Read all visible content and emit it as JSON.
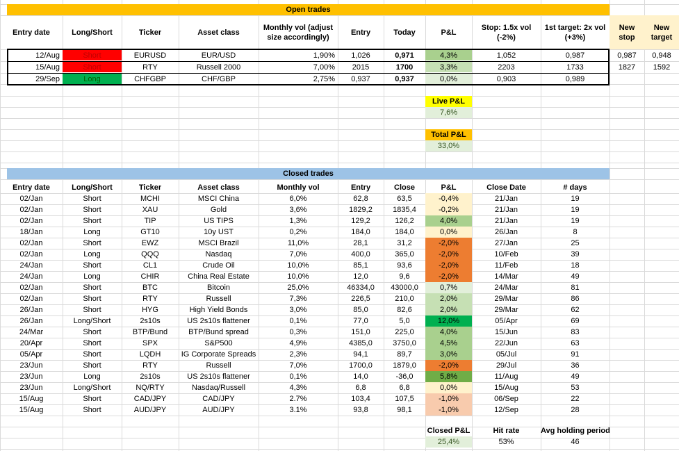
{
  "colors": {
    "header_orange": "#FFC000",
    "header_blue": "#9DC3E6",
    "short_red": "#FF0000",
    "long_green": "#00B050",
    "pl_light_green": "#C6E0B4",
    "pl_green": "#A9D08E",
    "pl_mid_green": "#70AD47",
    "pl_dark_green": "#00B050",
    "pl_light_orange": "#F8CBAD",
    "pl_orange": "#F4B183",
    "pl_dark_orange": "#ED7D31",
    "pl_cream": "#FFF2CC",
    "summary_yellow": "#FFFF00",
    "summary_orange": "#FFC000",
    "summary_green_bg": "#E2EFDA",
    "new_cols_bg": "#FFF2CC"
  },
  "open": {
    "band_title": "Open trades",
    "headers": {
      "entry_date": "Entry date",
      "long_short": "Long/Short",
      "ticker": "Ticker",
      "asset_class": "Asset class",
      "monthly_vol": "Monthly vol (adjust size accordingly)",
      "entry": "Entry",
      "today": "Today",
      "pl": "P&L",
      "stop": "Stop: 1.5x vol (-2%)",
      "target": "1st target: 2x vol (+3%)",
      "new_stop": "New stop",
      "new_target": "New target"
    },
    "rows": [
      {
        "date": "12/Aug",
        "side": "Short",
        "ticker": "EURUSD",
        "asset": "EUR/USD",
        "vol": "1,90%",
        "entry": "1,026",
        "today": "0,971",
        "pl": "4,3%",
        "stop": "1,052",
        "target": "0,987",
        "new_stop": "0,987",
        "new_target": "0,948"
      },
      {
        "date": "15/Aug",
        "side": "Short",
        "ticker": "RTY",
        "asset": "Russell 2000",
        "vol": "7,00%",
        "entry": "2015",
        "today": "1700",
        "pl": "3,3%",
        "stop": "2203",
        "target": "1733",
        "new_stop": "1827",
        "new_target": "1592"
      },
      {
        "date": "29/Sep",
        "side": "Long",
        "ticker": "CHFGBP",
        "asset": "CHF/GBP",
        "vol": "2,75%",
        "entry": "0,937",
        "today": "0,937",
        "pl": "0,0%",
        "stop": "0,903",
        "target": "0,989",
        "new_stop": "",
        "new_target": ""
      }
    ],
    "live_pl_label": "Live P&L",
    "live_pl_value": "7,6%",
    "total_pl_label": "Total P&L",
    "total_pl_value": "33,0%"
  },
  "closed": {
    "band_title": "Closed trades",
    "headers": {
      "entry_date": "Entry date",
      "long_short": "Long/Short",
      "ticker": "Ticker",
      "asset_class": "Asset class",
      "monthly_vol": "Monthly vol",
      "entry": "Entry",
      "close": "Close",
      "pl": "P&L",
      "close_date": "Close Date",
      "days": "# days"
    },
    "rows": [
      {
        "date": "02/Jan",
        "side": "Short",
        "ticker": "MCHI",
        "asset": "MSCI China",
        "vol": "6,0%",
        "entry": "62,8",
        "close": "63,5",
        "pl": "-0,4%",
        "pl_color": "#FFF2CC",
        "close_date": "21/Jan",
        "days": "19"
      },
      {
        "date": "02/Jan",
        "side": "Short",
        "ticker": "XAU",
        "asset": "Gold",
        "vol": "3,6%",
        "entry": "1829,2",
        "close": "1835,4",
        "pl": "-0,2%",
        "pl_color": "#FFF2CC",
        "close_date": "21/Jan",
        "days": "19"
      },
      {
        "date": "02/Jan",
        "side": "Short",
        "ticker": "TIP",
        "asset": "US TIPS",
        "vol": "1,3%",
        "entry": "129,2",
        "close": "126,2",
        "pl": "4,0%",
        "pl_color": "#A9D08E",
        "close_date": "21/Jan",
        "days": "19"
      },
      {
        "date": "18/Jan",
        "side": "Long",
        "ticker": "GT10",
        "asset": "10y UST",
        "vol": "0,2%",
        "entry": "184,0",
        "close": "184,0",
        "pl": "0,0%",
        "pl_color": "#FFF2CC",
        "close_date": "26/Jan",
        "days": "8"
      },
      {
        "date": "02/Jan",
        "side": "Short",
        "ticker": "EWZ",
        "asset": "MSCI Brazil",
        "vol": "11,0%",
        "entry": "28,1",
        "close": "31,2",
        "pl": "-2,0%",
        "pl_color": "#ED7D31",
        "close_date": "27/Jan",
        "days": "25"
      },
      {
        "date": "02/Jan",
        "side": "Long",
        "ticker": "QQQ",
        "asset": "Nasdaq",
        "vol": "7,0%",
        "entry": "400,0",
        "close": "365,0",
        "pl": "-2,0%",
        "pl_color": "#ED7D31",
        "close_date": "10/Feb",
        "days": "39"
      },
      {
        "date": "24/Jan",
        "side": "Short",
        "ticker": "CL1",
        "asset": "Crude Oil",
        "vol": "10,0%",
        "entry": "85,1",
        "close": "93,6",
        "pl": "-2,0%",
        "pl_color": "#ED7D31",
        "close_date": "11/Feb",
        "days": "18"
      },
      {
        "date": "24/Jan",
        "side": "Long",
        "ticker": "CHIR",
        "asset": "China Real Estate",
        "vol": "10,0%",
        "entry": "12,0",
        "close": "9,6",
        "pl": "-2,0%",
        "pl_color": "#ED7D31",
        "close_date": "14/Mar",
        "days": "49"
      },
      {
        "date": "02/Jan",
        "side": "Short",
        "ticker": "BTC",
        "asset": "Bitcoin",
        "vol": "25,0%",
        "entry": "46334,0",
        "close": "43000,0",
        "pl": "0,7%",
        "pl_color": "#E2EFDA",
        "close_date": "24/Mar",
        "days": "81"
      },
      {
        "date": "02/Jan",
        "side": "Short",
        "ticker": "RTY",
        "asset": "Russell",
        "vol": "7,3%",
        "entry": "226,5",
        "close": "210,0",
        "pl": "2,0%",
        "pl_color": "#C6E0B4",
        "close_date": "29/Mar",
        "days": "86"
      },
      {
        "date": "26/Jan",
        "side": "Short",
        "ticker": "HYG",
        "asset": "High Yield Bonds",
        "vol": "3,0%",
        "entry": "85,0",
        "close": "82,6",
        "pl": "2,0%",
        "pl_color": "#C6E0B4",
        "close_date": "29/Mar",
        "days": "62"
      },
      {
        "date": "26/Jan",
        "side": "Long/Short",
        "ticker": "2s10s",
        "asset": "US 2s10s flattener",
        "vol": "0,1%",
        "entry": "77,0",
        "close": "5,0",
        "pl": "12,0%",
        "pl_color": "#00B050",
        "close_date": "05/Apr",
        "days": "69"
      },
      {
        "date": "24/Mar",
        "side": "Short",
        "ticker": "BTP/Bund",
        "asset": "BTP/Bund spread",
        "vol": "0,3%",
        "entry": "151,0",
        "close": "225,0",
        "pl": "4,0%",
        "pl_color": "#A9D08E",
        "close_date": "15/Jun",
        "days": "83"
      },
      {
        "date": "20/Apr",
        "side": "Short",
        "ticker": "SPX",
        "asset": "S&P500",
        "vol": "4,9%",
        "entry": "4385,0",
        "close": "3750,0",
        "pl": "4,5%",
        "pl_color": "#A9D08E",
        "close_date": "22/Jun",
        "days": "63"
      },
      {
        "date": "05/Apr",
        "side": "Short",
        "ticker": "LQDH",
        "asset": "IG Corporate Spreads",
        "vol": "2,3%",
        "entry": "94,1",
        "close": "89,7",
        "pl": "3,0%",
        "pl_color": "#A9D08E",
        "close_date": "05/Jul",
        "days": "91"
      },
      {
        "date": "23/Jun",
        "side": "Short",
        "ticker": "RTY",
        "asset": "Russell",
        "vol": "7,0%",
        "entry": "1700,0",
        "close": "1879,0",
        "pl": "-2,0%",
        "pl_color": "#ED7D31",
        "close_date": "29/Jul",
        "days": "36"
      },
      {
        "date": "23/Jun",
        "side": "Long",
        "ticker": "2s10s",
        "asset": "US 2s10s flattener",
        "vol": "0,1%",
        "entry": "14,0",
        "close": "-36,0",
        "pl": "5,8%",
        "pl_color": "#70AD47",
        "close_date": "11/Aug",
        "days": "49"
      },
      {
        "date": "23/Jun",
        "side": "Long/Short",
        "ticker": "NQ/RTY",
        "asset": "Nasdaq/Russell",
        "vol": "4,3%",
        "entry": "6,8",
        "close": "6,8",
        "pl": "0,0%",
        "pl_color": "#FFF2CC",
        "close_date": "15/Aug",
        "days": "53"
      },
      {
        "date": "15/Aug",
        "side": "Short",
        "ticker": "CAD/JPY",
        "asset": "CAD/JPY",
        "vol": "2.7%",
        "entry": "103,4",
        "close": "107,5",
        "pl": "-1,0%",
        "pl_color": "#F8CBAD",
        "close_date": "06/Sep",
        "days": "22"
      },
      {
        "date": "15/Aug",
        "side": "Short",
        "ticker": "AUD/JPY",
        "asset": "AUD/JPY",
        "vol": "3.1%",
        "entry": "93,8",
        "close": "98,1",
        "pl": "-1,0%",
        "pl_color": "#F8CBAD",
        "close_date": "12/Sep",
        "days": "28"
      }
    ],
    "closed_pl_label": "Closed P&L",
    "closed_pl_value": "25,4%",
    "hit_rate_label": "Hit rate",
    "hit_rate_value": "53%",
    "avg_hold_label": "Avg holding period",
    "avg_hold_value": "46"
  }
}
